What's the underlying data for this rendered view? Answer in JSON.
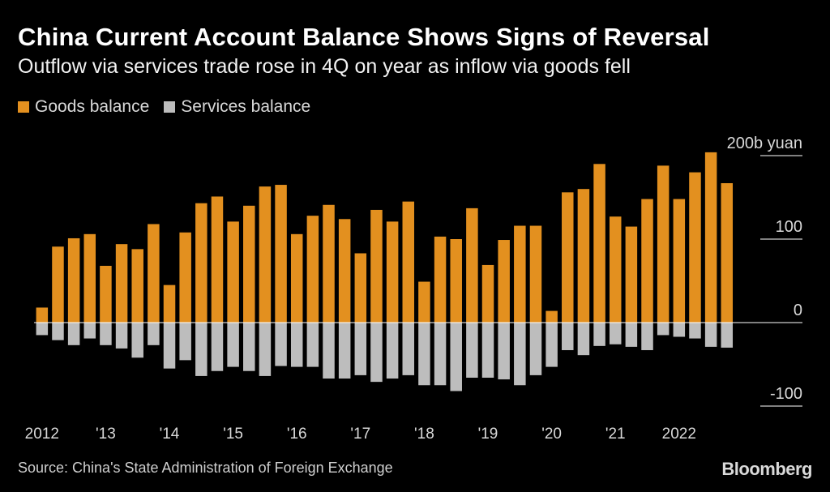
{
  "title": "China Current Account Balance Shows Signs of Reversal",
  "subtitle": "Outflow via services trade rose in 4Q on year as inflow via goods fell",
  "legend": [
    {
      "label": "Goods balance",
      "color": "#e3901f"
    },
    {
      "label": "Services balance",
      "color": "#bdbdbd"
    }
  ],
  "source": "Source: China's State Administration of Foreign Exchange",
  "brand": "Bloomberg",
  "chart_data": {
    "type": "bar",
    "stacked": false,
    "frequency": "quarterly",
    "unit_label": "200b yuan",
    "y_ticks": [
      {
        "value": 200,
        "label": "200b yuan"
      },
      {
        "value": 100,
        "label": "100"
      },
      {
        "value": 0,
        "label": "0"
      },
      {
        "value": -100,
        "label": "-100"
      }
    ],
    "ylim": [
      -110,
      215
    ],
    "x_labels": [
      {
        "index": 0,
        "label": "2012"
      },
      {
        "index": 4,
        "label": "'13"
      },
      {
        "index": 8,
        "label": "'14"
      },
      {
        "index": 12,
        "label": "'15"
      },
      {
        "index": 16,
        "label": "'16"
      },
      {
        "index": 20,
        "label": "'17"
      },
      {
        "index": 24,
        "label": "'18"
      },
      {
        "index": 28,
        "label": "'19"
      },
      {
        "index": 32,
        "label": "'20"
      },
      {
        "index": 36,
        "label": "'21"
      },
      {
        "index": 40,
        "label": "2022"
      }
    ],
    "categories": [
      "2012Q1",
      "2012Q2",
      "2012Q3",
      "2012Q4",
      "2013Q1",
      "2013Q2",
      "2013Q3",
      "2013Q4",
      "2014Q1",
      "2014Q2",
      "2014Q3",
      "2014Q4",
      "2015Q1",
      "2015Q2",
      "2015Q3",
      "2015Q4",
      "2016Q1",
      "2016Q2",
      "2016Q3",
      "2016Q4",
      "2017Q1",
      "2017Q2",
      "2017Q3",
      "2017Q4",
      "2018Q1",
      "2018Q2",
      "2018Q3",
      "2018Q4",
      "2019Q1",
      "2019Q2",
      "2019Q3",
      "2019Q4",
      "2020Q1",
      "2020Q2",
      "2020Q3",
      "2020Q4",
      "2021Q1",
      "2021Q2",
      "2021Q3",
      "2021Q4",
      "2022Q1",
      "2022Q2",
      "2022Q3",
      "2022Q4"
    ],
    "series": [
      {
        "name": "Goods balance",
        "color": "#e3901f",
        "values": [
          18,
          91,
          101,
          106,
          68,
          94,
          88,
          118,
          45,
          108,
          143,
          151,
          121,
          140,
          163,
          165,
          106,
          128,
          141,
          124,
          83,
          135,
          121,
          145,
          49,
          103,
          100,
          137,
          69,
          99,
          116,
          116,
          14,
          156,
          160,
          190,
          127,
          115,
          148,
          188,
          148,
          180,
          204,
          167
        ]
      },
      {
        "name": "Services balance",
        "color": "#bdbdbd",
        "values": [
          -15,
          -21,
          -27,
          -19,
          -27,
          -31,
          -42,
          -27,
          -55,
          -45,
          -64,
          -58,
          -53,
          -58,
          -64,
          -52,
          -53,
          -53,
          -67,
          -67,
          -63,
          -71,
          -67,
          -63,
          -75,
          -75,
          -82,
          -66,
          -66,
          -68,
          -75,
          -63,
          -53,
          -33,
          -39,
          -28,
          -26,
          -29,
          -33,
          -15,
          -17,
          -19,
          -29,
          -30
        ]
      }
    ]
  }
}
